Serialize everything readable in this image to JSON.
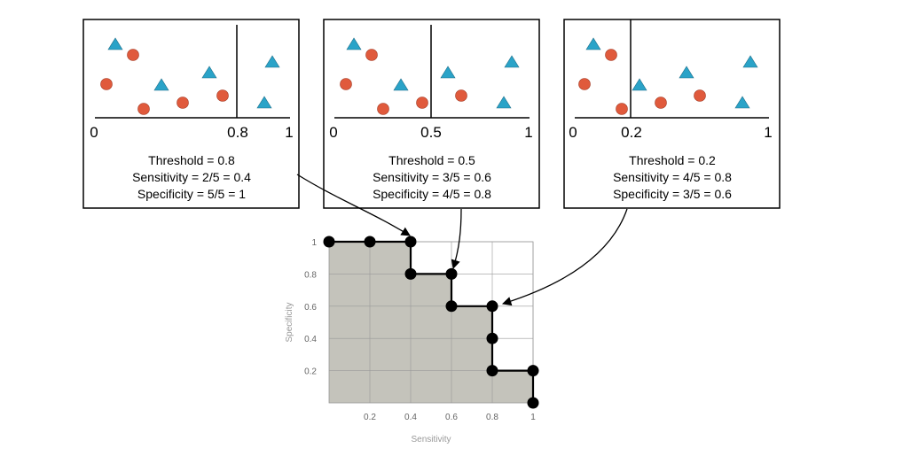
{
  "panels": [
    {
      "axis_labels": [
        "0",
        "0.8",
        "1"
      ],
      "threshold": 0.8,
      "lines": [
        "Threshold = 0.8",
        "Sensitivity = 2/5 = 0.4",
        "Specificity = 5/5 = 1"
      ]
    },
    {
      "axis_labels": [
        "0",
        "0.5",
        "1"
      ],
      "threshold": 0.5,
      "lines": [
        "Threshold = 0.5",
        "Sensitivity = 3/5 = 0.6",
        "Specificity = 4/5 = 0.8"
      ]
    },
    {
      "axis_labels": [
        "0",
        "0.2",
        "1"
      ],
      "threshold": 0.2,
      "lines": [
        "Threshold = 0.2",
        "Sensitivity = 4/5 = 0.8",
        "Specificity = 3/5 = 0.6"
      ]
    }
  ],
  "chart_data": {
    "type": "line",
    "title": "",
    "xlabel": "Sensitivity",
    "ylabel": "Specificity",
    "xlim": [
      0,
      1
    ],
    "ylim": [
      0,
      1
    ],
    "x_ticks": [
      "0.2",
      "0.4",
      "0.6",
      "0.8",
      "1"
    ],
    "y_ticks": [
      "0.2",
      "0.4",
      "0.6",
      "0.8",
      "1"
    ],
    "grid": true,
    "points": [
      {
        "x": 0,
        "y": 1
      },
      {
        "x": 0.2,
        "y": 1
      },
      {
        "x": 0.4,
        "y": 1
      },
      {
        "x": 0.4,
        "y": 0.8
      },
      {
        "x": 0.6,
        "y": 0.8
      },
      {
        "x": 0.6,
        "y": 0.6
      },
      {
        "x": 0.8,
        "y": 0.6
      },
      {
        "x": 0.8,
        "y": 0.4
      },
      {
        "x": 0.8,
        "y": 0.2
      },
      {
        "x": 1,
        "y": 0.2
      },
      {
        "x": 1,
        "y": 0
      }
    ],
    "area_fill": true
  },
  "colors": {
    "circle": "#e05a3c",
    "triangle": "#2aa3c8",
    "area": "#c4c3bb",
    "grid": "#999999"
  }
}
